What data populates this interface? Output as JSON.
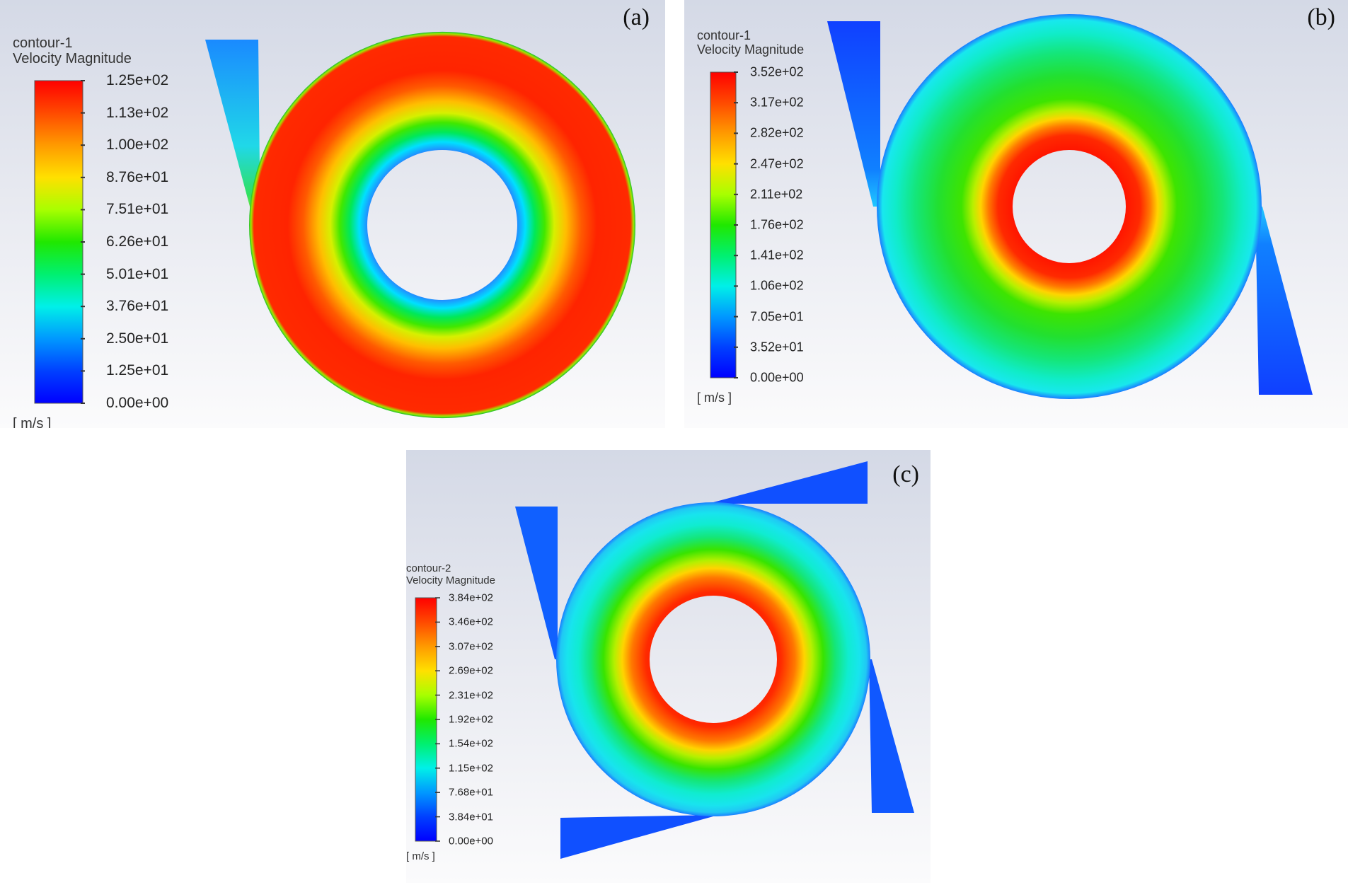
{
  "panels": [
    {
      "label": "(a)",
      "contour_name": "contour-1",
      "quantity": "Velocity Magnitude",
      "units": "[ m/s ]",
      "ticks": [
        "1.25e+02",
        "1.13e+02",
        "1.00e+02",
        "8.76e+01",
        "7.51e+01",
        "6.26e+01",
        "5.01e+01",
        "3.76e+01",
        "2.50e+01",
        "1.25e+01",
        "0.00e+00"
      ],
      "inlets": 1,
      "profile": "high at outer wall, low near inner hole"
    },
    {
      "label": "(b)",
      "contour_name": "contour-1",
      "quantity": "Velocity Magnitude",
      "units": "[ m/s ]",
      "ticks": [
        "3.52e+02",
        "3.17e+02",
        "2.82e+02",
        "2.47e+02",
        "2.11e+02",
        "1.76e+02",
        "1.41e+02",
        "1.06e+02",
        "7.05e+01",
        "3.52e+01",
        "0.00e+00"
      ],
      "inlets": 2,
      "profile": "high near inner hole, low at outer wall"
    },
    {
      "label": "(c)",
      "contour_name": "contour-2",
      "quantity": "Velocity Magnitude",
      "units": "[ m/s ]",
      "ticks": [
        "3.84e+02",
        "3.46e+02",
        "3.07e+02",
        "2.69e+02",
        "2.31e+02",
        "1.92e+02",
        "1.54e+02",
        "1.15e+02",
        "7.68e+01",
        "3.84e+01",
        "0.00e+00"
      ],
      "inlets": 4,
      "profile": "high near inner hole, low at outer wall"
    }
  ],
  "colormap": [
    "#0000ff",
    "#0090ff",
    "#00ffff",
    "#00ff50",
    "#00e800",
    "#a0ff00",
    "#ffff00",
    "#ffa800",
    "#ff4a00",
    "#ff0000"
  ]
}
